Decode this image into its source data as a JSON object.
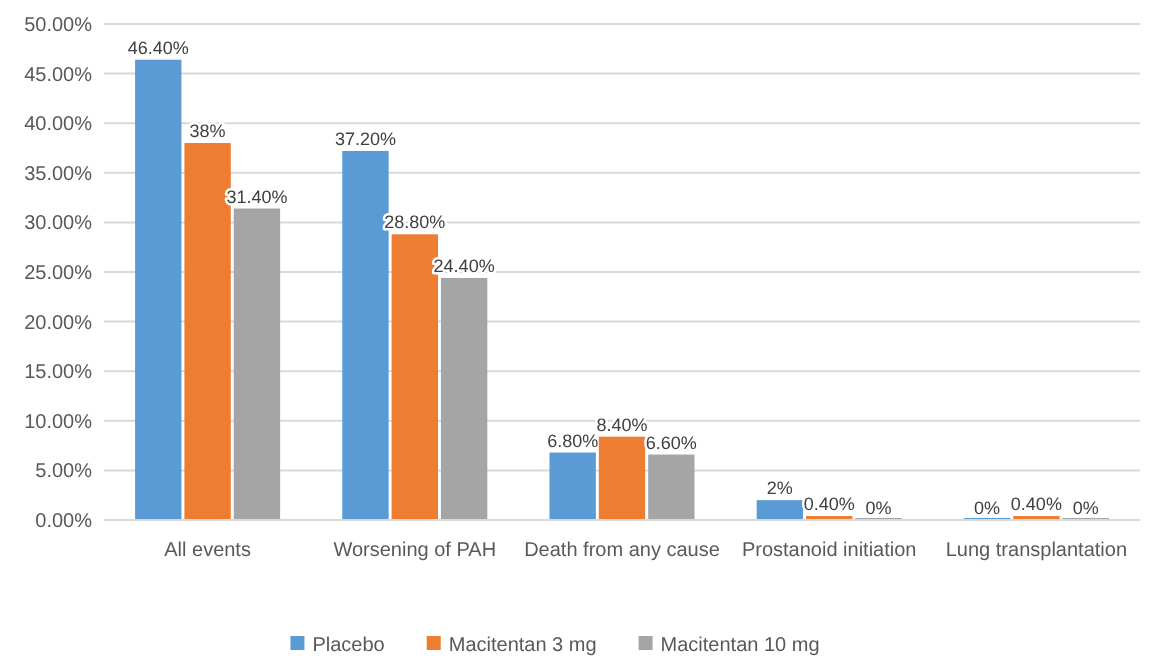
{
  "chart_data": {
    "type": "bar",
    "categories": [
      "All events",
      "Worsening of PAH",
      "Death from any cause",
      "Prostanoid initiation",
      "Lung transplantation"
    ],
    "series": [
      {
        "name": "Placebo",
        "color": "#5b9bd5",
        "values": [
          46.4,
          37.2,
          6.8,
          2,
          0
        ],
        "value_labels": [
          "46.40%",
          "37.20%",
          "6.80%",
          "2%",
          "0%"
        ]
      },
      {
        "name": "Macitentan 3 mg",
        "color": "#ed7d31",
        "values": [
          38,
          28.8,
          8.4,
          0.4,
          0.4
        ],
        "value_labels": [
          "38%",
          "28.80%",
          "8.40%",
          "0.40%",
          "0.40%"
        ]
      },
      {
        "name": "Macitentan 10 mg",
        "color": "#a5a5a5",
        "values": [
          31.4,
          24.4,
          6.6,
          0,
          0
        ],
        "value_labels": [
          "31.40%",
          "24.40%",
          "6.60%",
          "0%",
          "0%"
        ]
      }
    ],
    "ylim": [
      0,
      50
    ],
    "yticks": [
      {
        "value": 0,
        "label": "0.00%"
      },
      {
        "value": 5,
        "label": "5.00%"
      },
      {
        "value": 10,
        "label": "10.00%"
      },
      {
        "value": 15,
        "label": "15.00%"
      },
      {
        "value": 20,
        "label": "20.00%"
      },
      {
        "value": 25,
        "label": "25.00%"
      },
      {
        "value": 30,
        "label": "30.00%"
      },
      {
        "value": 35,
        "label": "35.00%"
      },
      {
        "value": 40,
        "label": "40.00%"
      },
      {
        "value": 45,
        "label": "45.00%"
      },
      {
        "value": 50,
        "label": "50.00%"
      }
    ],
    "grid": "y",
    "legend": "bottom"
  }
}
